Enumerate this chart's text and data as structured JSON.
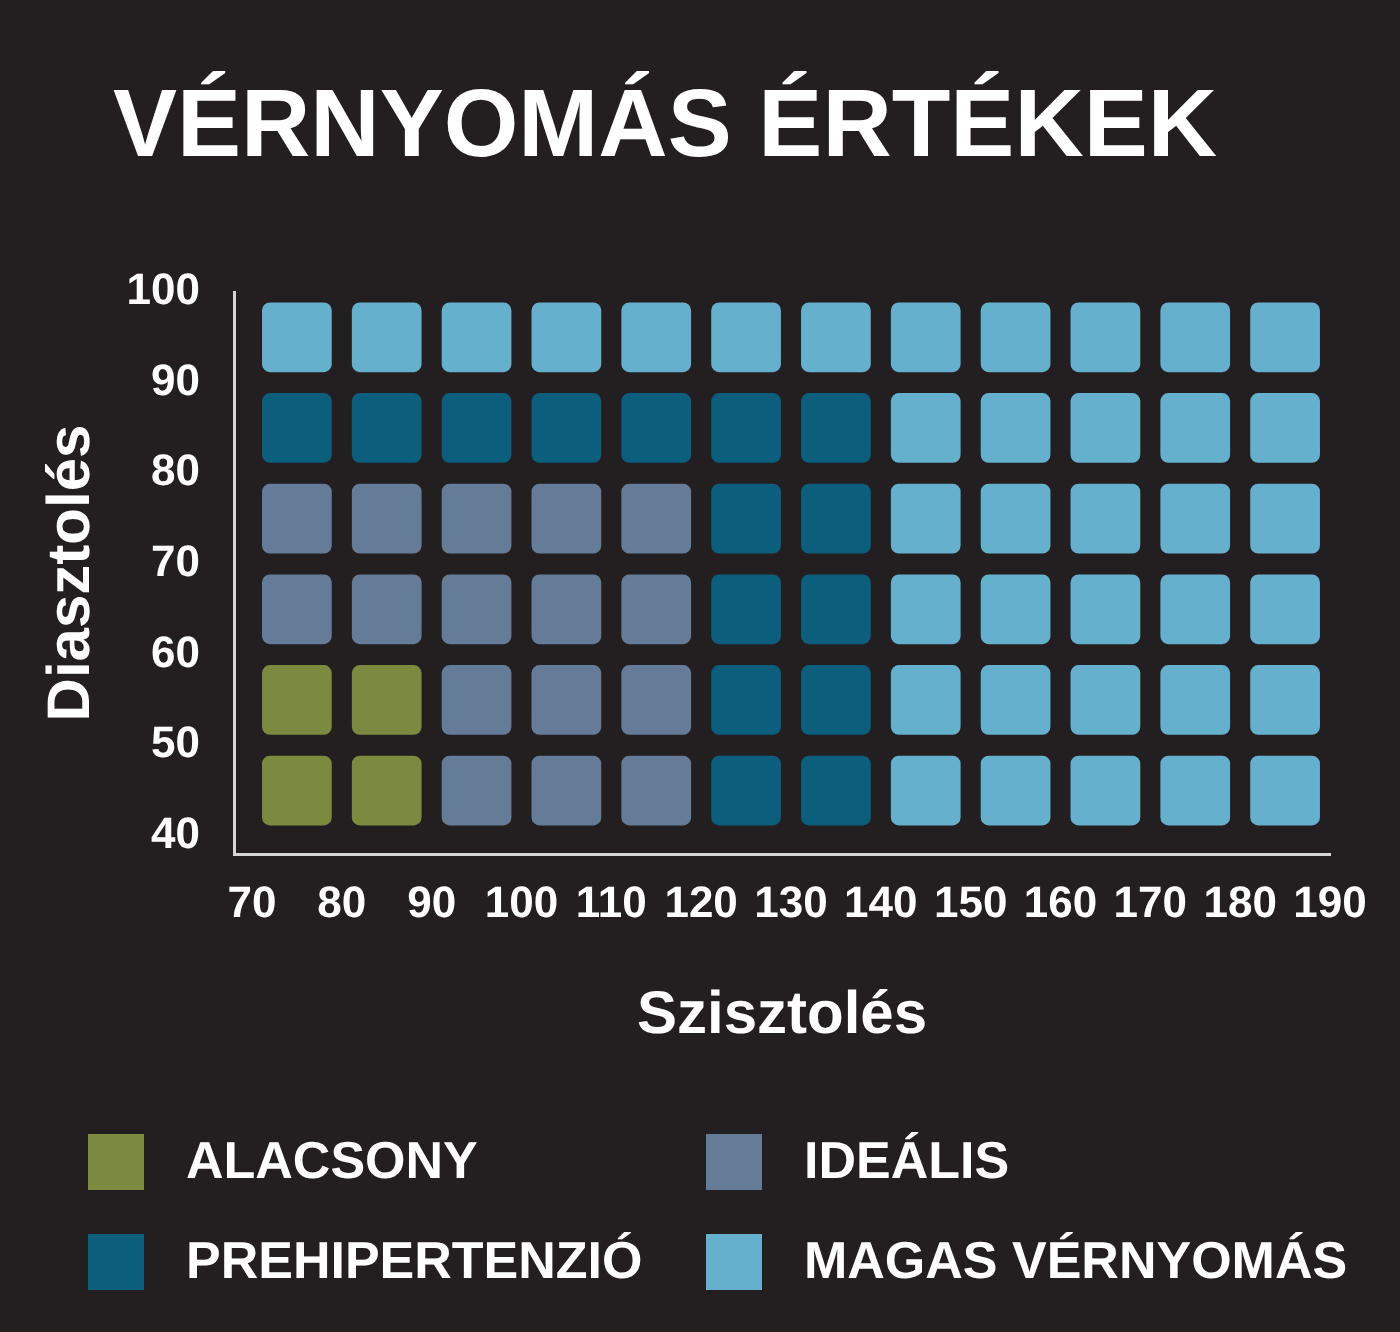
{
  "chart_data": {
    "type": "scatter",
    "title": "VÉRNYOMÁS ÉRTÉKEK",
    "xlabel": "Szisztolés",
    "ylabel": "Diasztolés",
    "xlim": [
      68,
      190
    ],
    "ylim": [
      38,
      100
    ],
    "xticks": [
      70,
      80,
      90,
      100,
      110,
      120,
      130,
      140,
      150,
      160,
      170,
      180,
      190
    ],
    "yticks": [
      40,
      50,
      60,
      70,
      80,
      90,
      100
    ],
    "legend": "bottom",
    "marker": "square",
    "series": [
      {
        "name": "ALACSONY",
        "color": "#7b8a3e",
        "x": [
          75,
          85,
          75,
          85
        ],
        "values": [
          55,
          55,
          45,
          45
        ]
      },
      {
        "name": "IDEÁLIS",
        "color": "#647c98",
        "x": [
          75,
          85,
          95,
          105,
          115,
          75,
          85,
          95,
          105,
          115,
          95,
          105,
          115,
          95,
          105,
          115
        ],
        "values": [
          75,
          75,
          75,
          75,
          75,
          65,
          65,
          65,
          65,
          65,
          55,
          55,
          55,
          45,
          45,
          45
        ]
      },
      {
        "name": "PREHIPERTENZIÓ",
        "color": "#0b5e7c",
        "x": [
          75,
          85,
          95,
          105,
          115,
          125,
          135,
          125,
          135,
          125,
          135,
          125,
          135,
          125,
          135
        ],
        "values": [
          85,
          85,
          85,
          85,
          85,
          85,
          85,
          75,
          75,
          65,
          65,
          55,
          55,
          45,
          45
        ]
      },
      {
        "name": "MAGAS VÉRNYOMÁS",
        "color": "#65b0cd",
        "x": [
          75,
          85,
          95,
          105,
          115,
          125,
          135,
          145,
          155,
          165,
          175,
          185,
          145,
          155,
          165,
          175,
          185,
          145,
          155,
          165,
          175,
          185,
          145,
          155,
          165,
          175,
          185,
          145,
          155,
          165,
          175,
          185,
          145,
          155,
          165,
          175,
          185
        ],
        "values": [
          95,
          95,
          95,
          95,
          95,
          95,
          95,
          95,
          95,
          95,
          95,
          95,
          85,
          85,
          85,
          85,
          85,
          75,
          75,
          75,
          75,
          75,
          65,
          65,
          65,
          65,
          65,
          55,
          55,
          55,
          55,
          55,
          45,
          45,
          45,
          45,
          45
        ]
      }
    ]
  }
}
